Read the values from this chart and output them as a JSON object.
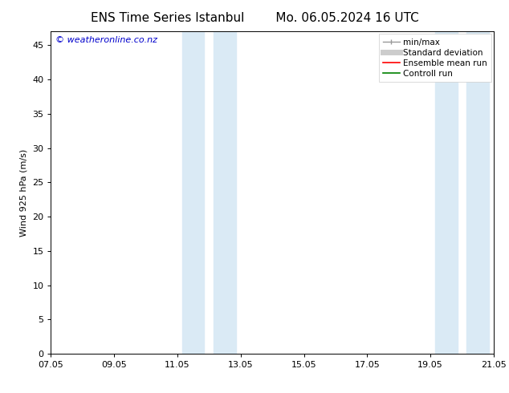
{
  "title_left": "ENS Time Series Istanbul",
  "title_right": "Mo. 06.05.2024 16 UTC",
  "ylabel": "Wind 925 hPa (m/s)",
  "watermark": "© weatheronline.co.nz",
  "xtick_labels": [
    "07.05",
    "09.05",
    "11.05",
    "13.05",
    "15.05",
    "17.05",
    "19.05",
    "21.05"
  ],
  "xtick_positions": [
    0,
    2,
    4,
    6,
    8,
    10,
    12,
    14
  ],
  "ylim": [
    0,
    47
  ],
  "ytick_positions": [
    0,
    5,
    10,
    15,
    20,
    25,
    30,
    35,
    40,
    45
  ],
  "ytick_labels": [
    "0",
    "5",
    "10",
    "15",
    "20",
    "25",
    "30",
    "35",
    "40",
    "45"
  ],
  "shaded_bands": [
    {
      "x_start": 4.15,
      "x_end": 4.85,
      "color": "#daeaf5"
    },
    {
      "x_start": 5.15,
      "x_end": 5.85,
      "color": "#daeaf5"
    },
    {
      "x_start": 12.15,
      "x_end": 12.85,
      "color": "#daeaf5"
    },
    {
      "x_start": 13.15,
      "x_end": 13.85,
      "color": "#daeaf5"
    }
  ],
  "legend_items": [
    {
      "label": "min/max",
      "color": "#999999",
      "lw": 1.0,
      "type": "minmax"
    },
    {
      "label": "Standard deviation",
      "color": "#cccccc",
      "lw": 5,
      "type": "line"
    },
    {
      "label": "Ensemble mean run",
      "color": "#ff0000",
      "lw": 1.2,
      "type": "line"
    },
    {
      "label": "Controll run",
      "color": "#008000",
      "lw": 1.2,
      "type": "line"
    }
  ],
  "background_color": "#ffffff",
  "plot_bg_color": "#ffffff",
  "title_fontsize": 11,
  "axis_fontsize": 8,
  "tick_fontsize": 8,
  "watermark_color": "#0000cc",
  "watermark_fontsize": 8,
  "legend_fontsize": 7.5
}
